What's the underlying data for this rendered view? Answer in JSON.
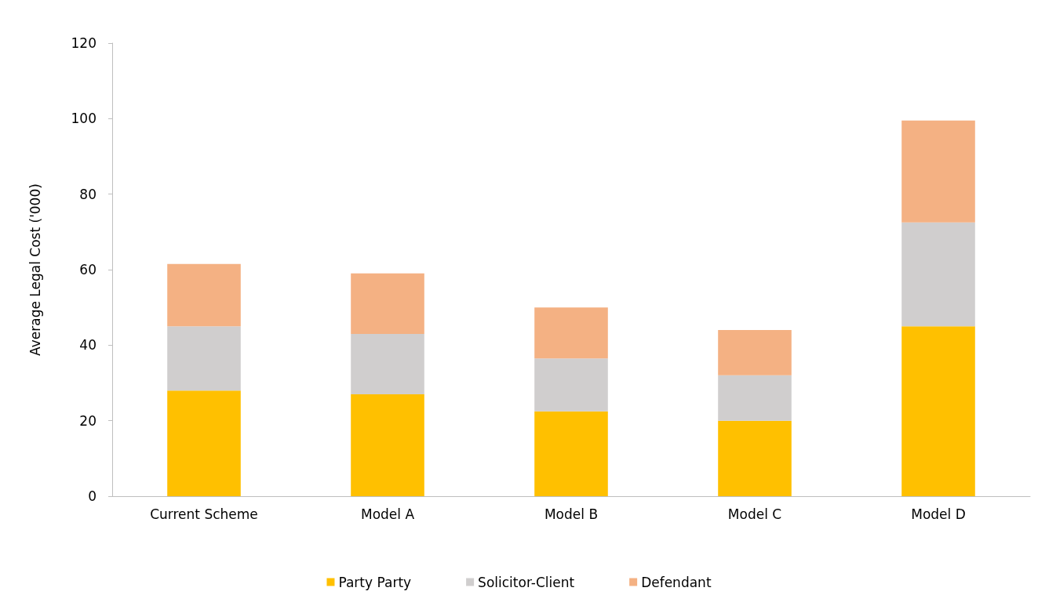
{
  "chart_data": {
    "type": "bar",
    "stacked": true,
    "ylabel": "Average Legal Cost ('000)",
    "categories": [
      "Current Scheme",
      "Model A",
      "Model B",
      "Model C",
      "Model D"
    ],
    "series": [
      {
        "name": "Party Party",
        "color": "#ffc000",
        "values": [
          28,
          27,
          22.5,
          20,
          45
        ]
      },
      {
        "name": "Solicitor-Client",
        "color": "#d0cece",
        "values": [
          17,
          16,
          14,
          12,
          27.5
        ]
      },
      {
        "name": "Defendant",
        "color": "#f4b183",
        "values": [
          16.5,
          16,
          13.5,
          12,
          27
        ]
      }
    ],
    "ylim": [
      0,
      120
    ],
    "yticks": [
      0,
      20,
      40,
      60,
      80,
      100,
      120
    ],
    "grid": false,
    "legend": "bottom"
  }
}
